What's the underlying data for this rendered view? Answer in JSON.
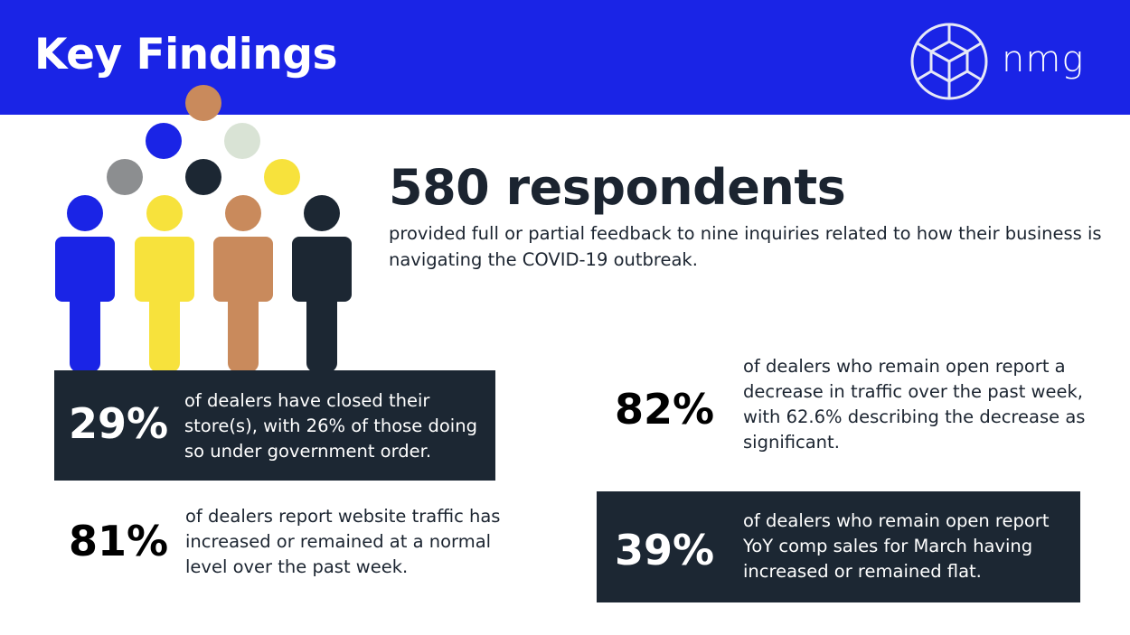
{
  "header": {
    "title": "Key Findings",
    "logo_text": "nmg",
    "background": "#1a24e6"
  },
  "icons": [
    "people-figures-icon",
    "nmg-logo-icon"
  ],
  "respondents": {
    "headline": "580 respondents",
    "description": "provided full or partial feedback to nine inquiries related to how their business is navigating the COVID-19 outbreak."
  },
  "stats": [
    {
      "value": "29%",
      "text": "of dealers have closed their store(s), with 26% of those doing so under government order."
    },
    {
      "value": "81%",
      "text": "of dealers report website traffic has increased or remained at a normal level over the past week."
    },
    {
      "value": "82%",
      "text": "of dealers who remain open report a decrease in traffic over the past week, with 62.6% describing the decrease as significant."
    },
    {
      "value": "39%",
      "text": "of dealers who remain open report YoY comp sales for March having increased or remained flat."
    }
  ],
  "colors": {
    "blue": "#1a24e6",
    "yellow": "#f7e23c",
    "copper": "#c98a5c",
    "navy": "#1c2733",
    "grey": "#8c8e90",
    "sage": "#d9e3d5"
  }
}
